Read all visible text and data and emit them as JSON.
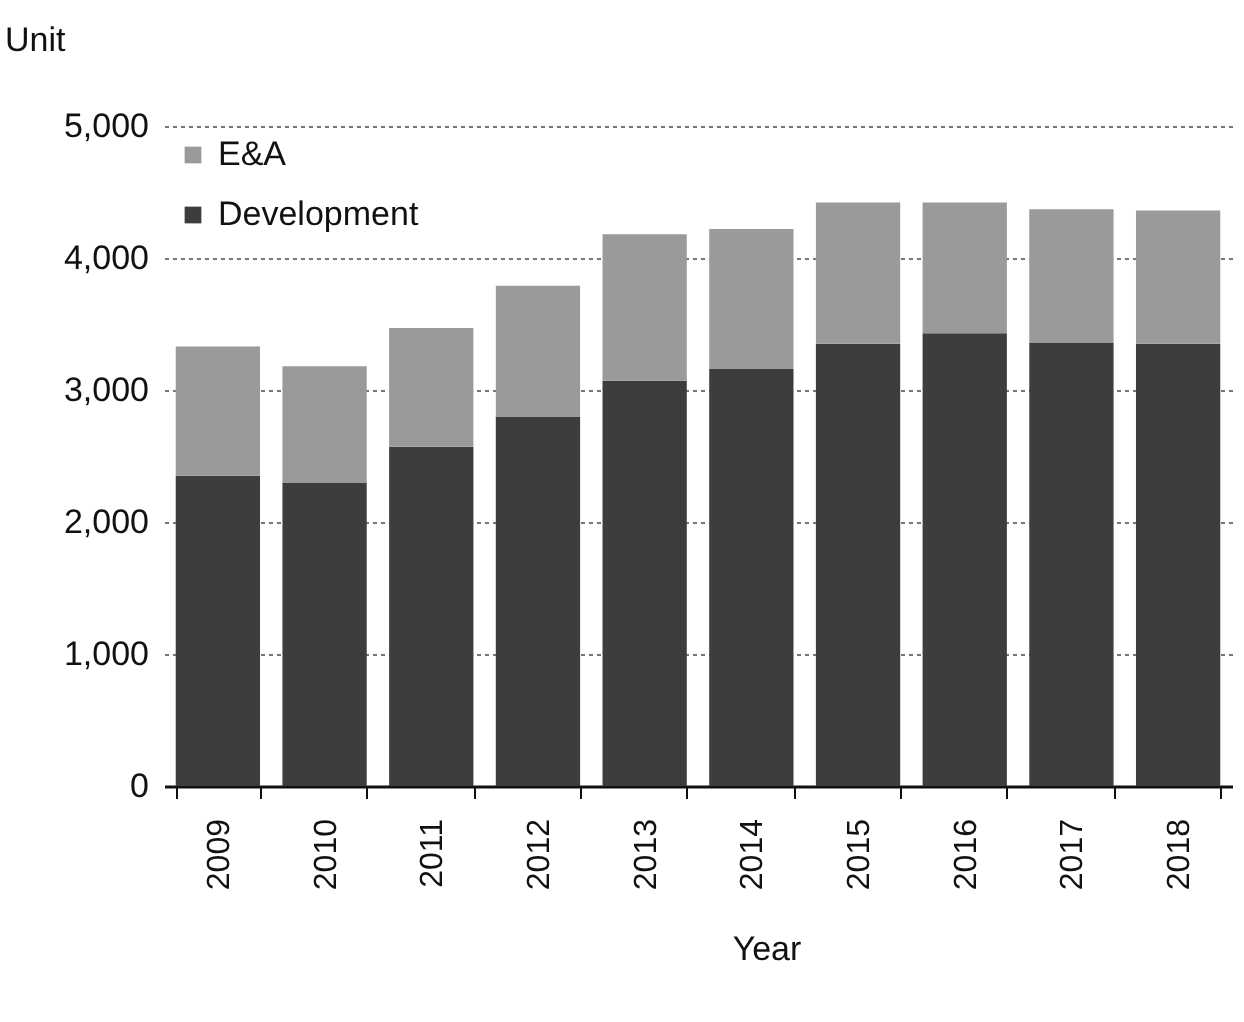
{
  "chart_data": {
    "type": "bar",
    "stacked": true,
    "xlabel": "Year",
    "ylabel": "Unit",
    "categories": [
      "2009",
      "2010",
      "2011",
      "2012",
      "2013",
      "2014",
      "2015",
      "2016",
      "2017",
      "2018"
    ],
    "series": [
      {
        "name": "Development",
        "color": "#3d3d3d",
        "values": [
          2350,
          2300,
          2570,
          2800,
          3070,
          3160,
          3350,
          3430,
          3360,
          3350
        ]
      },
      {
        "name": "E&A",
        "color": "#9a9a9a",
        "values": [
          980,
          880,
          900,
          990,
          1110,
          1060,
          1070,
          990,
          1010,
          1010
        ]
      }
    ],
    "ylim": [
      0,
      5000
    ],
    "yticks": [
      0,
      {
        "value": 1000,
        "label": "1,000"
      },
      {
        "value": 2000,
        "label": "2,000"
      },
      {
        "value": 3000,
        "label": "3,000"
      },
      {
        "value": 4000,
        "label": "4,000"
      },
      {
        "value": 5000,
        "label": "5,000"
      }
    ],
    "grid": "y",
    "legend": "top left"
  }
}
